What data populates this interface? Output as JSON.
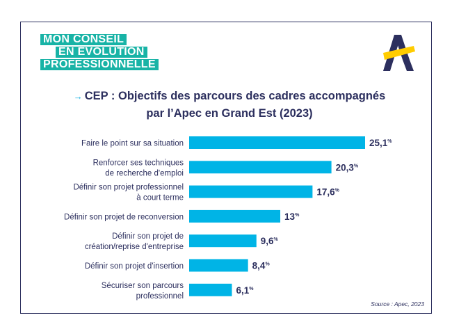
{
  "logo": {
    "line1": "MON CONSEIL",
    "line2": "EN ÉVOLUTION",
    "line3": "PROFESSIONNELLE"
  },
  "brand_icon": "apec-a-logo",
  "colors": {
    "bar": "#00B4E6",
    "text": "#2C2F5E",
    "logo_bg": "#18B3A6",
    "brand_navy": "#2C2F5E",
    "brand_yellow": "#FFCC00"
  },
  "chart_data": {
    "type": "bar",
    "orientation": "horizontal",
    "title_arrow": "→",
    "title_line1": "CEP : Objectifs des parcours des cadres accompagnés",
    "title_line2": "par l’Apec en Grand Est (2023)",
    "categories": [
      [
        "Faire le point sur sa situation"
      ],
      [
        "Renforcer ses techniques",
        "de recherche d'emploi"
      ],
      [
        "Définir son projet professionnel",
        "à court terme"
      ],
      [
        "Définir son projet de reconversion"
      ],
      [
        "Définir son projet de",
        "création/reprise d'entreprise"
      ],
      [
        "Définir son projet d'insertion"
      ],
      [
        "Sécuriser son parcours",
        "professionnel"
      ]
    ],
    "values": [
      25.1,
      20.3,
      17.6,
      13,
      9.6,
      8.4,
      6.1
    ],
    "value_labels": [
      "25,1",
      "20,3",
      "17,6",
      "13",
      "9,6",
      "8,4",
      "6,1"
    ],
    "unit": "%",
    "xlim": [
      0,
      25.1
    ],
    "grid": false,
    "legend": "none"
  },
  "source": "Source : Apec, 2023"
}
